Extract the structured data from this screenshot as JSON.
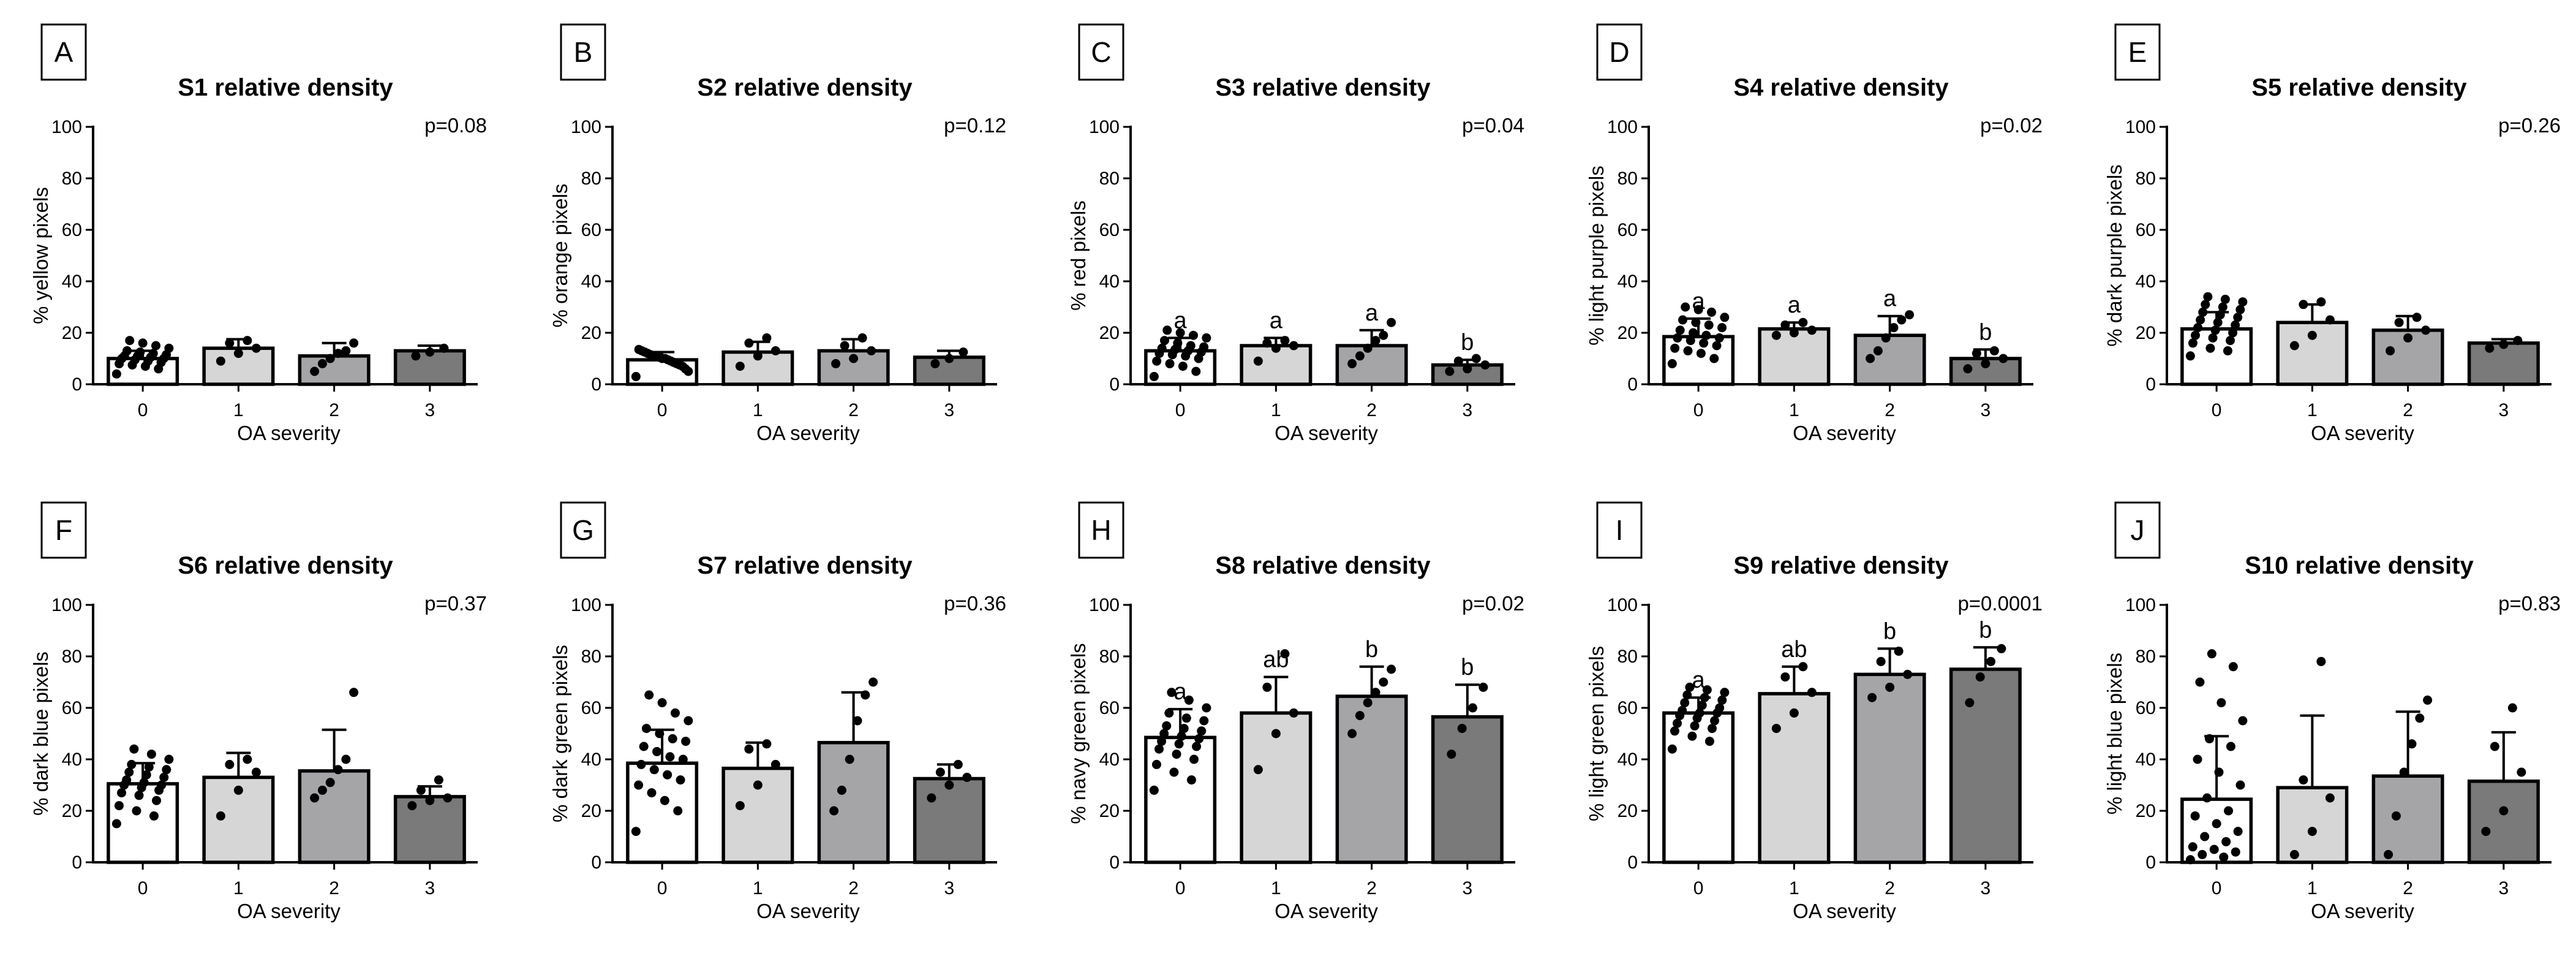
{
  "chart_data": [
    {
      "type": "bar",
      "panel": "A",
      "title": "S1 relative density",
      "p_value": "p=0.08",
      "xlabel": "OA severity",
      "ylabel": "% yellow pixels",
      "categories": [
        "0",
        "1",
        "2",
        "3"
      ],
      "values": [
        10,
        14,
        11,
        13
      ],
      "sd": [
        3,
        3.5,
        5,
        2
      ],
      "significance": [
        "",
        "",
        "",
        ""
      ],
      "points": [
        [
          4,
          6,
          7,
          7.5,
          8,
          8.5,
          9,
          9.5,
          10,
          10,
          10.5,
          11,
          11,
          11.5,
          12,
          12.5,
          13,
          14,
          15,
          16,
          17
        ],
        [
          9,
          12,
          14,
          16,
          17
        ],
        [
          5,
          8,
          10,
          12,
          13,
          16
        ],
        [
          11,
          12.5,
          14
        ]
      ],
      "ylim": [
        0,
        100
      ],
      "yticks": [
        "0",
        "20",
        "40",
        "60",
        "80",
        "100"
      ],
      "bar_colors": [
        "#ffffff",
        "#d6d6d6",
        "#a5a5a8",
        "#7a7a7a"
      ]
    },
    {
      "type": "bar",
      "panel": "B",
      "title": "S2 relative density",
      "p_value": "p=0.12",
      "xlabel": "OA severity",
      "ylabel": "% orange pixels",
      "categories": [
        "0",
        "1",
        "2",
        "3"
      ],
      "values": [
        9.5,
        12.5,
        13,
        10.5
      ],
      "sd": [
        3,
        4,
        4.5,
        2.5
      ],
      "significance": [
        "",
        "",
        "",
        ""
      ],
      "points": [
        [
          3,
          5,
          6,
          7,
          7.5,
          8,
          8.5,
          9,
          9.5,
          10,
          10,
          10.5,
          11,
          11,
          11.5,
          12,
          12.5,
          13,
          13.5
        ],
        [
          7,
          11,
          13,
          16,
          18
        ],
        [
          8,
          10,
          13,
          15,
          18
        ],
        [
          8,
          10,
          12.5
        ]
      ],
      "ylim": [
        0,
        100
      ],
      "yticks": [
        "0",
        "20",
        "40",
        "60",
        "80",
        "100"
      ],
      "bar_colors": [
        "#ffffff",
        "#d6d6d6",
        "#a5a5a8",
        "#7a7a7a"
      ]
    },
    {
      "type": "bar",
      "panel": "C",
      "title": "S3 relative density",
      "p_value": "p=0.04",
      "xlabel": "OA severity",
      "ylabel": "% red pixels",
      "categories": [
        "0",
        "1",
        "2",
        "3"
      ],
      "values": [
        13,
        15,
        15,
        7.5
      ],
      "sd": [
        5,
        3,
        6,
        2
      ],
      "significance": [
        "a",
        "a",
        "a",
        "b"
      ],
      "points": [
        [
          3,
          5,
          7,
          8,
          9,
          10,
          11,
          11.5,
          12,
          12.5,
          13,
          13.5,
          14,
          14.5,
          15,
          16,
          17,
          18,
          19,
          20,
          21
        ],
        [
          9,
          14,
          15,
          16,
          17
        ],
        [
          8,
          11,
          14,
          17,
          19,
          24
        ],
        [
          5,
          6,
          7.5,
          9,
          10
        ]
      ],
      "ylim": [
        0,
        100
      ],
      "yticks": [
        "0",
        "20",
        "40",
        "60",
        "80",
        "100"
      ],
      "bar_colors": [
        "#ffffff",
        "#d6d6d6",
        "#a5a5a8",
        "#7a7a7a"
      ]
    },
    {
      "type": "bar",
      "panel": "D",
      "title": "S4 relative density",
      "p_value": "p=0.02",
      "xlabel": "OA severity",
      "ylabel": "% light purple pixels",
      "categories": [
        "0",
        "1",
        "2",
        "3"
      ],
      "values": [
        18.5,
        21.5,
        19,
        10
      ],
      "sd": [
        7,
        2.5,
        7.5,
        3.5
      ],
      "significance": [
        "a",
        "a",
        "a",
        "b"
      ],
      "points": [
        [
          8,
          10,
          12,
          13,
          14,
          15,
          16,
          17,
          18,
          18,
          19,
          20,
          21,
          22,
          23,
          24,
          25,
          26,
          28,
          29,
          30
        ],
        [
          19,
          20,
          21,
          23,
          24
        ],
        [
          10,
          13,
          18,
          22,
          25,
          27
        ],
        [
          6,
          8,
          10,
          12,
          13
        ]
      ],
      "ylim": [
        0,
        100
      ],
      "yticks": [
        "0",
        "20",
        "40",
        "60",
        "80",
        "100"
      ],
      "bar_colors": [
        "#ffffff",
        "#d6d6d6",
        "#a5a5a8",
        "#7a7a7a"
      ]
    },
    {
      "type": "bar",
      "panel": "E",
      "title": "S5 relative density",
      "p_value": "p=0.26",
      "xlabel": "OA severity",
      "ylabel": "% dark purple pixels",
      "categories": [
        "0",
        "1",
        "2",
        "3"
      ],
      "values": [
        21.5,
        24,
        21,
        16
      ],
      "sd": [
        6.5,
        7,
        5.5,
        1.5
      ],
      "significance": [
        "",
        "",
        "",
        ""
      ],
      "points": [
        [
          11,
          13,
          14,
          16,
          17,
          18,
          19,
          20,
          21,
          22,
          23,
          24,
          25,
          26,
          27,
          28,
          29,
          30,
          31,
          32,
          33,
          34
        ],
        [
          15,
          19,
          25,
          31,
          32
        ],
        [
          13,
          18,
          21,
          24,
          26
        ],
        [
          14,
          15.5,
          17
        ]
      ],
      "ylim": [
        0,
        100
      ],
      "yticks": [
        "0",
        "20",
        "40",
        "60",
        "80",
        "100"
      ],
      "bar_colors": [
        "#ffffff",
        "#d6d6d6",
        "#a5a5a8",
        "#7a7a7a"
      ]
    },
    {
      "type": "bar",
      "panel": "F",
      "title": "S6 relative density",
      "p_value": "p=0.37",
      "xlabel": "OA severity",
      "ylabel": "% dark blue pixels",
      "categories": [
        "0",
        "1",
        "2",
        "3"
      ],
      "values": [
        30.5,
        33,
        35.5,
        25.5
      ],
      "sd": [
        8,
        9.5,
        16,
        4
      ],
      "significance": [
        "",
        "",
        "",
        ""
      ],
      "points": [
        [
          15,
          18,
          20,
          22,
          24,
          26,
          27,
          28,
          29,
          30,
          30,
          31,
          32,
          33,
          34,
          35,
          36,
          37,
          38,
          40,
          42,
          44
        ],
        [
          18,
          28,
          35,
          38,
          40
        ],
        [
          25,
          28,
          31,
          36,
          40,
          66
        ],
        [
          22,
          24,
          25,
          28,
          32
        ]
      ],
      "ylim": [
        0,
        100
      ],
      "yticks": [
        "0",
        "20",
        "40",
        "60",
        "80",
        "100"
      ],
      "bar_colors": [
        "#ffffff",
        "#d6d6d6",
        "#a5a5a8",
        "#7a7a7a"
      ]
    },
    {
      "type": "bar",
      "panel": "G",
      "title": "S7 relative density",
      "p_value": "p=0.36",
      "xlabel": "OA severity",
      "ylabel": "% dark green pixels",
      "categories": [
        "0",
        "1",
        "2",
        "3"
      ],
      "values": [
        38.5,
        36.5,
        46.5,
        32.5
      ],
      "sd": [
        13,
        10,
        19.5,
        5.5
      ],
      "significance": [
        "",
        "",
        "",
        ""
      ],
      "points": [
        [
          12,
          20,
          24,
          27,
          30,
          32,
          34,
          36,
          38,
          40,
          41,
          43,
          45,
          47,
          48,
          50,
          52,
          55,
          58,
          62,
          65
        ],
        [
          22,
          30,
          38,
          44,
          46
        ],
        [
          20,
          28,
          40,
          55,
          65,
          70
        ],
        [
          25,
          30,
          33,
          35,
          38
        ]
      ],
      "ylim": [
        0,
        100
      ],
      "yticks": [
        "0",
        "20",
        "40",
        "60",
        "80",
        "100"
      ],
      "bar_colors": [
        "#ffffff",
        "#d6d6d6",
        "#a5a5a8",
        "#7a7a7a"
      ]
    },
    {
      "type": "bar",
      "panel": "H",
      "title": "S8 relative density",
      "p_value": "p=0.02",
      "xlabel": "OA severity",
      "ylabel": "% navy green pixels",
      "categories": [
        "0",
        "1",
        "2",
        "3"
      ],
      "values": [
        48.5,
        58,
        64.5,
        56.5
      ],
      "sd": [
        11,
        14,
        11.5,
        12.5
      ],
      "significance": [
        "a",
        "ab",
        "b",
        "b"
      ],
      "points": [
        [
          28,
          32,
          35,
          38,
          40,
          42,
          44,
          45,
          46,
          47,
          48,
          49,
          50,
          51,
          52,
          53,
          55,
          56,
          58,
          60,
          63,
          66
        ],
        [
          36,
          50,
          58,
          68,
          81
        ],
        [
          50,
          57,
          62,
          66,
          70,
          75
        ],
        [
          42,
          52,
          60,
          68
        ]
      ],
      "ylim": [
        0,
        100
      ],
      "yticks": [
        "0",
        "20",
        "40",
        "60",
        "80",
        "100"
      ],
      "bar_colors": [
        "#ffffff",
        "#d6d6d6",
        "#a5a5a8",
        "#7a7a7a"
      ]
    },
    {
      "type": "bar",
      "panel": "I",
      "title": "S9 relative density",
      "p_value": "p=0.0001",
      "xlabel": "OA severity",
      "ylabel": "% light green pixels",
      "categories": [
        "0",
        "1",
        "2",
        "3"
      ],
      "values": [
        58,
        65.5,
        73,
        75
      ],
      "sd": [
        6,
        10.5,
        10,
        8.5
      ],
      "significance": [
        "a",
        "ab",
        "b",
        "b"
      ],
      "points": [
        [
          44,
          47,
          49,
          51,
          52,
          53,
          54,
          55,
          56,
          57,
          58,
          58,
          59,
          60,
          61,
          62,
          63,
          64,
          65,
          66,
          67,
          68
        ],
        [
          52,
          58,
          66,
          72,
          76
        ],
        [
          64,
          68,
          73,
          78,
          82
        ],
        [
          62,
          72,
          78,
          83
        ]
      ],
      "ylim": [
        0,
        100
      ],
      "yticks": [
        "0",
        "20",
        "40",
        "60",
        "80",
        "100"
      ],
      "bar_colors": [
        "#ffffff",
        "#d6d6d6",
        "#a5a5a8",
        "#7a7a7a"
      ]
    },
    {
      "type": "bar",
      "panel": "J",
      "title": "S10 relative density",
      "p_value": "p=0.83",
      "xlabel": "OA severity",
      "ylabel": "% light blue pixels",
      "categories": [
        "0",
        "1",
        "2",
        "3"
      ],
      "values": [
        24.5,
        29,
        33.5,
        31.5
      ],
      "sd": [
        24.5,
        28,
        25,
        19
      ],
      "significance": [
        "",
        "",
        "",
        ""
      ],
      "points": [
        [
          1,
          2,
          3,
          4,
          5,
          6,
          8,
          10,
          12,
          15,
          18,
          20,
          25,
          30,
          35,
          40,
          45,
          48,
          55,
          62,
          70,
          76,
          81
        ],
        [
          3,
          12,
          25,
          32,
          78
        ],
        [
          3,
          18,
          35,
          46,
          56,
          63
        ],
        [
          12,
          20,
          35,
          45,
          60
        ]
      ],
      "ylim": [
        0,
        100
      ],
      "yticks": [
        "0",
        "20",
        "40",
        "60",
        "80",
        "100"
      ],
      "bar_colors": [
        "#ffffff",
        "#d6d6d6",
        "#a5a5a8",
        "#7a7a7a"
      ]
    }
  ]
}
